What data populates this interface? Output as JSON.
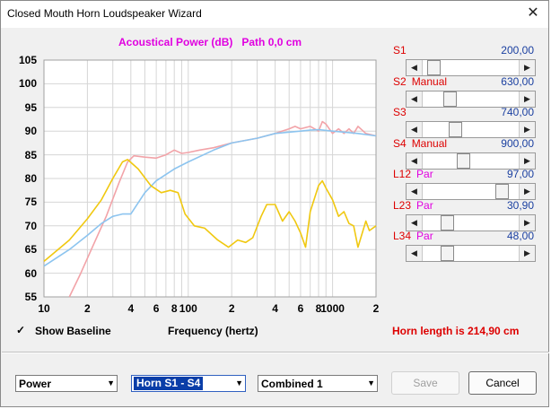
{
  "window": {
    "title": "Closed Mouth Horn Loudspeaker Wizard"
  },
  "chart_data": {
    "type": "line",
    "title": "Acoustical Power (dB)   Path 0,0 cm",
    "xlabel": "Frequency (hertz)",
    "ylabel": "",
    "x_scale": "log",
    "xlim": [
      10,
      2000
    ],
    "ylim": [
      55,
      105
    ],
    "y_ticks": [
      55,
      60,
      65,
      70,
      75,
      80,
      85,
      90,
      95,
      100,
      105
    ],
    "x_ticks": [
      {
        "value": 10,
        "label": "10"
      },
      {
        "value": 20,
        "label": "2"
      },
      {
        "value": 40,
        "label": "4"
      },
      {
        "value": 60,
        "label": "6"
      },
      {
        "value": 80,
        "label": "8"
      },
      {
        "value": 100,
        "label": "100"
      },
      {
        "value": 200,
        "label": "2"
      },
      {
        "value": 400,
        "label": "4"
      },
      {
        "value": 600,
        "label": "6"
      },
      {
        "value": 800,
        "label": "8"
      },
      {
        "value": 1000,
        "label": "1000"
      },
      {
        "value": 2000,
        "label": "2"
      }
    ],
    "grid": true,
    "series": [
      {
        "color": "#f2a3a8",
        "points": [
          [
            15,
            55
          ],
          [
            18,
            60
          ],
          [
            22,
            66
          ],
          [
            27,
            72
          ],
          [
            33,
            79
          ],
          [
            38,
            83.5
          ],
          [
            42,
            84.8
          ],
          [
            50,
            84.5
          ],
          [
            60,
            84.3
          ],
          [
            70,
            85
          ],
          [
            80,
            86
          ],
          [
            90,
            85.3
          ],
          [
            100,
            85.5
          ],
          [
            120,
            86
          ],
          [
            150,
            86.5
          ],
          [
            200,
            87.5
          ],
          [
            300,
            88.5
          ],
          [
            400,
            89.5
          ],
          [
            500,
            90.5
          ],
          [
            550,
            91
          ],
          [
            600,
            90.5
          ],
          [
            700,
            91
          ],
          [
            800,
            90
          ],
          [
            850,
            92
          ],
          [
            900,
            91.5
          ],
          [
            1000,
            89.5
          ],
          [
            1100,
            90.5
          ],
          [
            1200,
            89.5
          ],
          [
            1300,
            90.5
          ],
          [
            1400,
            89.5
          ],
          [
            1500,
            91
          ],
          [
            1700,
            89.5
          ],
          [
            2000,
            89
          ]
        ]
      },
      {
        "color": "#8cc4ef",
        "points": [
          [
            10,
            61.5
          ],
          [
            15,
            65
          ],
          [
            20,
            68
          ],
          [
            25,
            70.5
          ],
          [
            30,
            72
          ],
          [
            35,
            72.5
          ],
          [
            40,
            72.5
          ],
          [
            50,
            77
          ],
          [
            60,
            79.5
          ],
          [
            80,
            82
          ],
          [
            100,
            83.5
          ],
          [
            150,
            86
          ],
          [
            200,
            87.5
          ],
          [
            300,
            88.5
          ],
          [
            400,
            89.5
          ],
          [
            500,
            89.8
          ],
          [
            600,
            90
          ],
          [
            700,
            90.2
          ],
          [
            800,
            90.3
          ],
          [
            1000,
            90
          ],
          [
            1200,
            89.8
          ],
          [
            1500,
            89.5
          ],
          [
            2000,
            89
          ]
        ]
      },
      {
        "color": "#f0c810",
        "points": [
          [
            10,
            62.5
          ],
          [
            15,
            67
          ],
          [
            20,
            71.5
          ],
          [
            25,
            75.5
          ],
          [
            30,
            80
          ],
          [
            35,
            83.5
          ],
          [
            38,
            84
          ],
          [
            45,
            82
          ],
          [
            55,
            78.5
          ],
          [
            65,
            77
          ],
          [
            75,
            77.5
          ],
          [
            85,
            77
          ],
          [
            95,
            72.5
          ],
          [
            110,
            70
          ],
          [
            130,
            69.5
          ],
          [
            160,
            67
          ],
          [
            190,
            65.5
          ],
          [
            220,
            67
          ],
          [
            250,
            66.5
          ],
          [
            280,
            67.5
          ],
          [
            320,
            72
          ],
          [
            350,
            74.5
          ],
          [
            400,
            74.5
          ],
          [
            450,
            71
          ],
          [
            500,
            73
          ],
          [
            550,
            71
          ],
          [
            600,
            68.5
          ],
          [
            650,
            65.5
          ],
          [
            700,
            73
          ],
          [
            800,
            78.5
          ],
          [
            850,
            79.5
          ],
          [
            900,
            78
          ],
          [
            1000,
            75.5
          ],
          [
            1100,
            72
          ],
          [
            1200,
            73
          ],
          [
            1300,
            70.5
          ],
          [
            1400,
            70
          ],
          [
            1500,
            65.5
          ],
          [
            1700,
            71
          ],
          [
            1800,
            69
          ],
          [
            2000,
            70
          ]
        ]
      }
    ]
  },
  "sliders": [
    {
      "label": "S1",
      "mode": "",
      "mode_kind": "",
      "value": "200,00",
      "thumb": 0.06
    },
    {
      "label": "S2",
      "mode": "Manual",
      "mode_kind": "manual",
      "value": "630,00",
      "thumb": 0.26
    },
    {
      "label": "S3",
      "mode": "",
      "mode_kind": "",
      "value": "740,00",
      "thumb": 0.32
    },
    {
      "label": "S4",
      "mode": "Manual",
      "mode_kind": "manual",
      "value": "900,00",
      "thumb": 0.41
    },
    {
      "label": "L12",
      "mode": "Par",
      "mode_kind": "par",
      "value": "97,00",
      "thumb": 0.87
    },
    {
      "label": "L23",
      "mode": "Par",
      "mode_kind": "par",
      "value": "30,90",
      "thumb": 0.22
    },
    {
      "label": "L34",
      "mode": "Par",
      "mode_kind": "par",
      "value": "48,00",
      "thumb": 0.22
    }
  ],
  "show_baseline": {
    "label": "Show Baseline",
    "checked": true,
    "check_glyph": "✓"
  },
  "horn_length": "Horn length is 214,90 cm",
  "dropdowns": {
    "measure": "Power",
    "horn": "Horn S1 - S4",
    "combined": "Combined 1"
  },
  "buttons": {
    "save": "Save",
    "cancel": "Cancel"
  },
  "icons": {
    "close": "close-icon",
    "dropdown": "chevron-down-icon",
    "scroll_left": "arrow-left-icon",
    "scroll_right": "arrow-right-icon"
  }
}
